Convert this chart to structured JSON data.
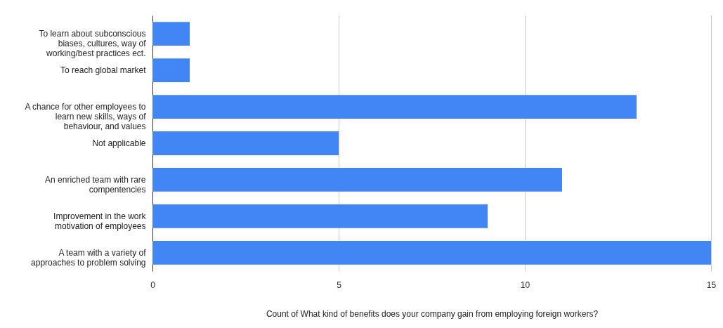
{
  "chart_data": {
    "type": "bar",
    "orientation": "horizontal",
    "xlabel": "Count of What kind of benefits does your company gain from employing foreign workers?",
    "categories": [
      "To learn about subconscious biases, cultures, way of working/best practices ect.",
      "To reach global market",
      "A chance for other employees to learn new skills, ways of behaviour, and values",
      "Not applicable",
      "An enriched team with rare compentencies",
      "Improvement in the work motivation of employees",
      "A team with a variety of approaches to problem solving"
    ],
    "values": [
      1,
      1,
      13,
      5,
      11,
      9,
      15
    ],
    "color": "#4285f4",
    "xlim": [
      0,
      15
    ],
    "xticks": [
      0,
      5,
      10,
      15
    ],
    "grid": "x"
  }
}
